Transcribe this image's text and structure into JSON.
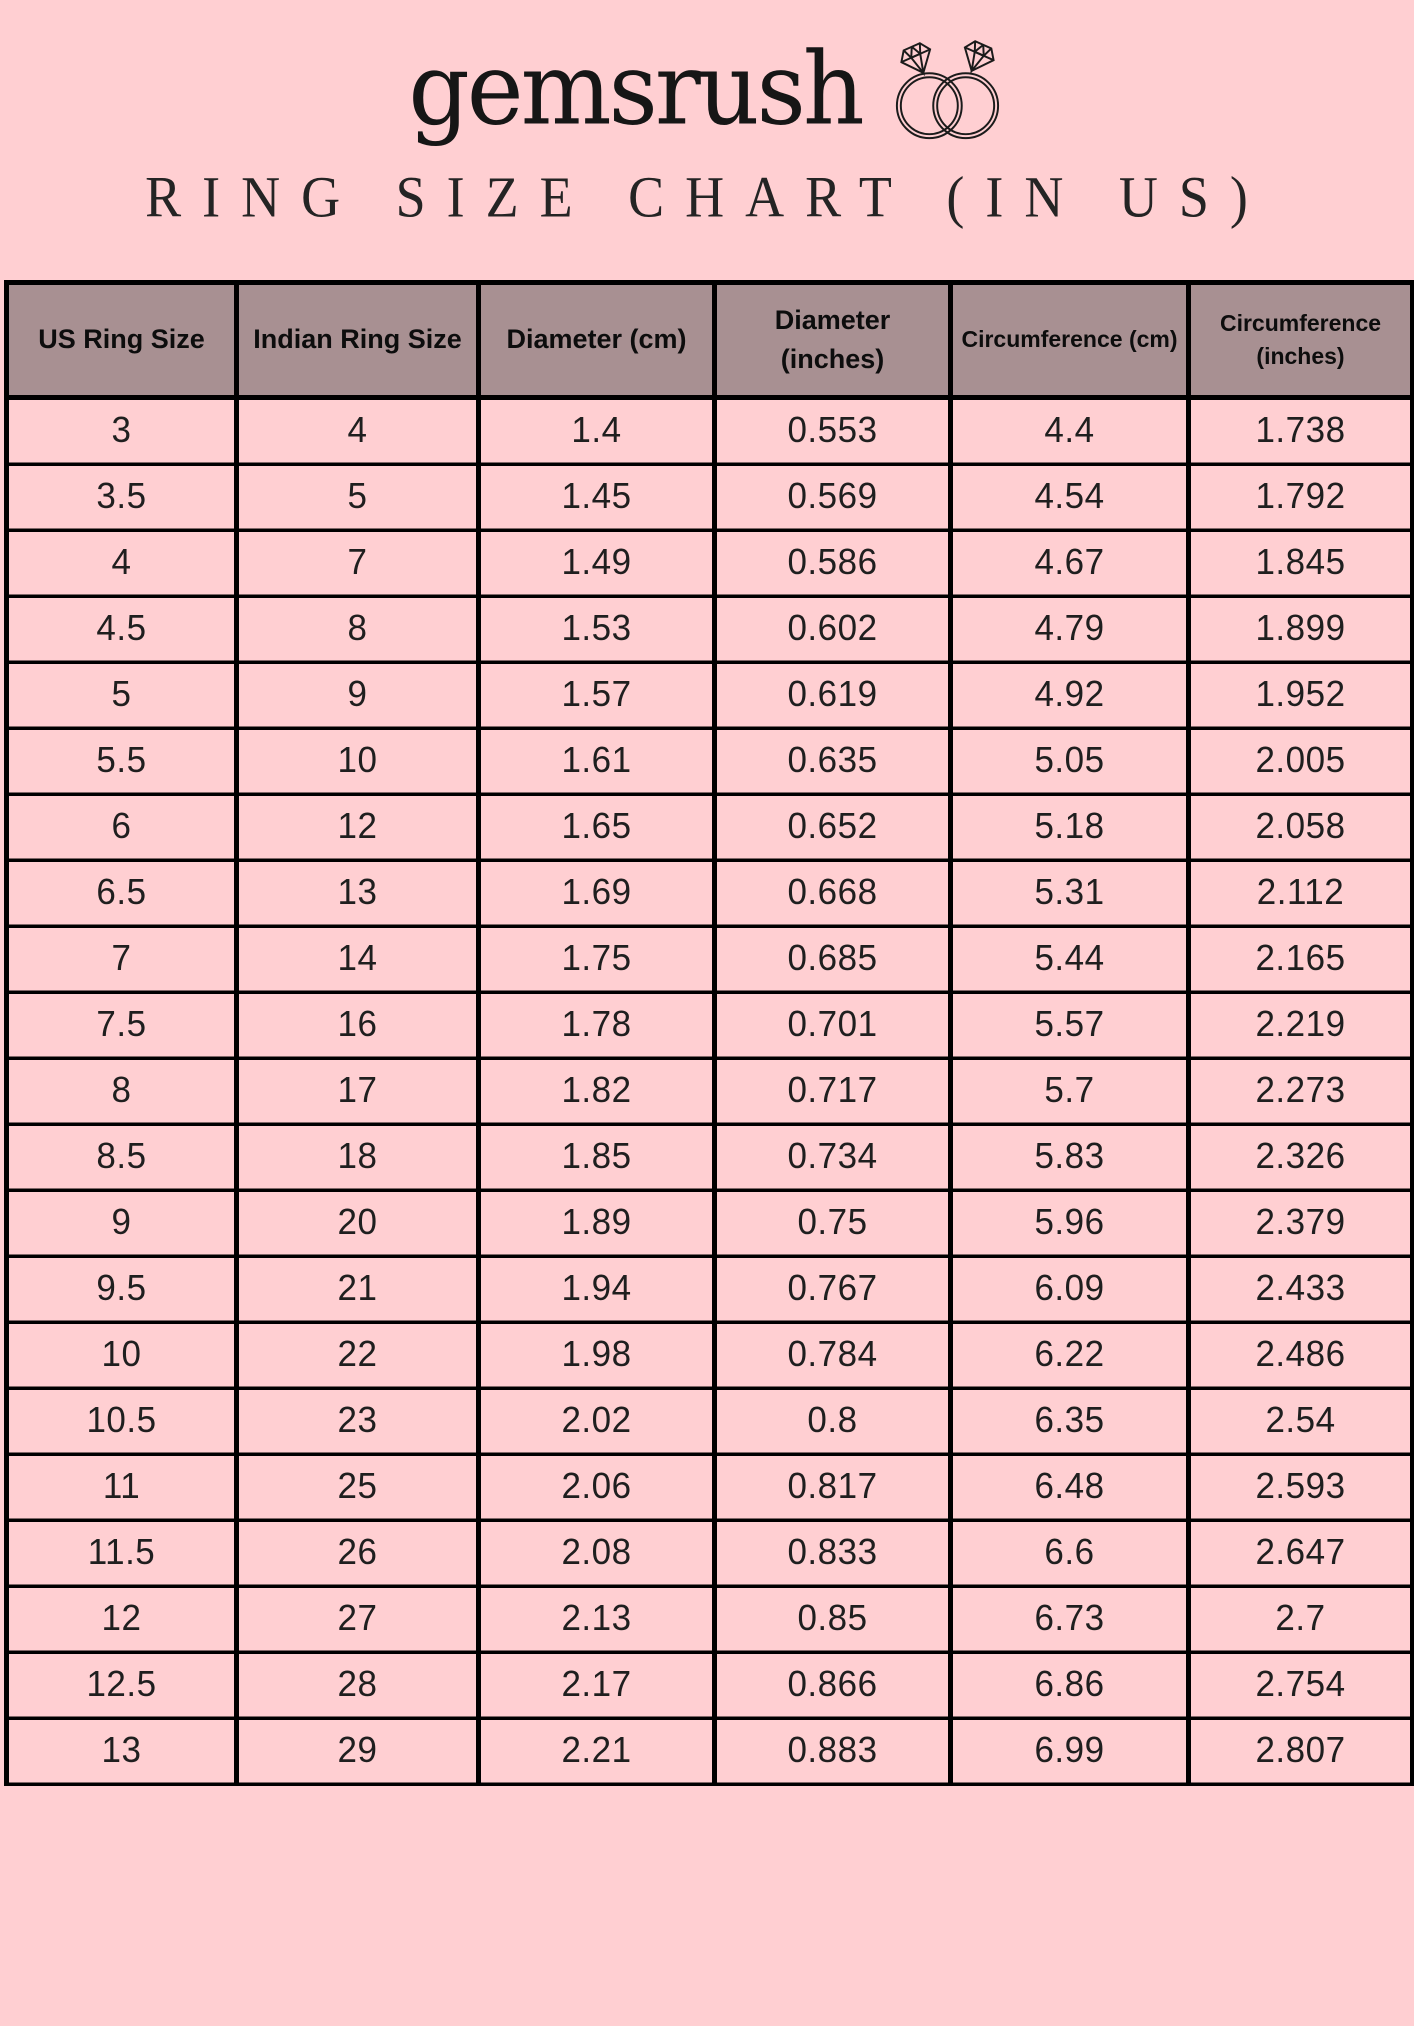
{
  "brand": {
    "logo_text": "gemsrush",
    "icon": "diamond-rings-icon"
  },
  "title": "RING SIZE CHART (IN US)",
  "colors": {
    "background": "#ffcfd2",
    "header_background": "#a89092",
    "border": "#000000",
    "text": "#1c1c1c"
  },
  "chart_data": {
    "type": "table",
    "title": "RING SIZE CHART (IN US)",
    "columns": [
      "US Ring Size",
      "Indian Ring Size",
      "Diameter (cm)",
      "Diameter (inches)",
      "Circumference (cm)",
      "Circumference (inches)"
    ],
    "rows": [
      [
        "3",
        "4",
        "1.4",
        "0.553",
        "4.4",
        "1.738"
      ],
      [
        "3.5",
        "5",
        "1.45",
        "0.569",
        "4.54",
        "1.792"
      ],
      [
        "4",
        "7",
        "1.49",
        "0.586",
        "4.67",
        "1.845"
      ],
      [
        "4.5",
        "8",
        "1.53",
        "0.602",
        "4.79",
        "1.899"
      ],
      [
        "5",
        "9",
        "1.57",
        "0.619",
        "4.92",
        "1.952"
      ],
      [
        "5.5",
        "10",
        "1.61",
        "0.635",
        "5.05",
        "2.005"
      ],
      [
        "6",
        "12",
        "1.65",
        "0.652",
        "5.18",
        "2.058"
      ],
      [
        "6.5",
        "13",
        "1.69",
        "0.668",
        "5.31",
        "2.112"
      ],
      [
        "7",
        "14",
        "1.75",
        "0.685",
        "5.44",
        "2.165"
      ],
      [
        "7.5",
        "16",
        "1.78",
        "0.701",
        "5.57",
        "2.219"
      ],
      [
        "8",
        "17",
        "1.82",
        "0.717",
        "5.7",
        "2.273"
      ],
      [
        "8.5",
        "18",
        "1.85",
        "0.734",
        "5.83",
        "2.326"
      ],
      [
        "9",
        "20",
        "1.89",
        "0.75",
        "5.96",
        "2.379"
      ],
      [
        "9.5",
        "21",
        "1.94",
        "0.767",
        "6.09",
        "2.433"
      ],
      [
        "10",
        "22",
        "1.98",
        "0.784",
        "6.22",
        "2.486"
      ],
      [
        "10.5",
        "23",
        "2.02",
        "0.8",
        "6.35",
        "2.54"
      ],
      [
        "11",
        "25",
        "2.06",
        "0.817",
        "6.48",
        "2.593"
      ],
      [
        "11.5",
        "26",
        "2.08",
        "0.833",
        "6.6",
        "2.647"
      ],
      [
        "12",
        "27",
        "2.13",
        "0.85",
        "6.73",
        "2.7"
      ],
      [
        "12.5",
        "28",
        "2.17",
        "0.866",
        "6.86",
        "2.754"
      ],
      [
        "13",
        "29",
        "2.21",
        "0.883",
        "6.99",
        "2.807"
      ]
    ]
  }
}
